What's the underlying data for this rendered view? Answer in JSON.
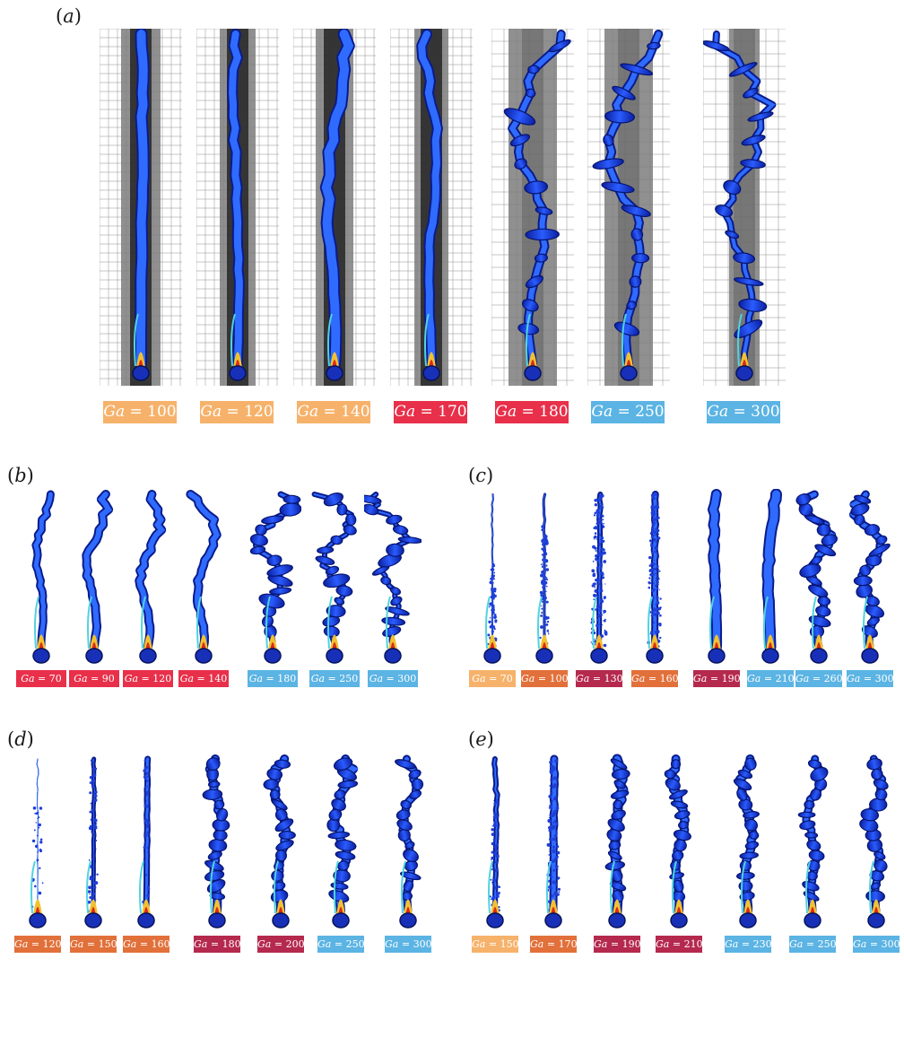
{
  "figure": {
    "panels": [
      {
        "letter": "a",
        "labels": [
          {
            "prefix": "Ga",
            "value": "= 100",
            "color": "#f6b26b"
          },
          {
            "prefix": "Ga",
            "value": "= 120",
            "color": "#f6b26b"
          },
          {
            "prefix": "Ga",
            "value": "= 140",
            "color": "#f6b26b"
          },
          {
            "prefix": "Ga",
            "value": "= 170",
            "color": "#e8304a"
          },
          {
            "prefix": "Ga",
            "value": "= 180",
            "color": "#e8304a"
          },
          {
            "prefix": "Ga",
            "value": "= 250",
            "color": "#5bb4e3"
          },
          {
            "prefix": "Ga",
            "value": "= 300",
            "color": "#5bb4e3"
          }
        ]
      },
      {
        "letter": "b",
        "labels": [
          {
            "prefix": "Ga",
            "value": "= 70",
            "color": "#e8304a"
          },
          {
            "prefix": "Ga",
            "value": "= 90",
            "color": "#e8304a"
          },
          {
            "prefix": "Ga",
            "value": "= 120",
            "color": "#e8304a"
          },
          {
            "prefix": "Ga",
            "value": "= 140",
            "color": "#e8304a"
          },
          {
            "prefix": "Ga",
            "value": "= 180",
            "color": "#5bb4e3"
          },
          {
            "prefix": "Ga",
            "value": "= 250",
            "color": "#5bb4e3"
          },
          {
            "prefix": "Ga",
            "value": "= 300",
            "color": "#5bb4e3"
          }
        ]
      },
      {
        "letter": "c",
        "labels": [
          {
            "prefix": "Ga",
            "value": "= 70",
            "color": "#f6b26b"
          },
          {
            "prefix": "Ga",
            "value": "= 100",
            "color": "#e2703a"
          },
          {
            "prefix": "Ga",
            "value": "= 130",
            "color": "#b5294e"
          },
          {
            "prefix": "Ga",
            "value": "= 160",
            "color": "#e2703a"
          },
          {
            "prefix": "Ga",
            "value": "= 190",
            "color": "#b5294e"
          },
          {
            "prefix": "Ga",
            "value": "= 210",
            "color": "#5bb4e3"
          },
          {
            "prefix": "Ga",
            "value": "= 260",
            "color": "#5bb4e3"
          },
          {
            "prefix": "Ga",
            "value": "= 300",
            "color": "#5bb4e3"
          }
        ]
      },
      {
        "letter": "d",
        "labels": [
          {
            "prefix": "Ga",
            "value": "= 120",
            "color": "#e2703a"
          },
          {
            "prefix": "Ga",
            "value": "= 150",
            "color": "#e2703a"
          },
          {
            "prefix": "Ga",
            "value": "= 160",
            "color": "#e2703a"
          },
          {
            "prefix": "Ga",
            "value": "= 180",
            "color": "#b5294e"
          },
          {
            "prefix": "Ga",
            "value": "= 200",
            "color": "#b5294e"
          },
          {
            "prefix": "Ga",
            "value": "= 250",
            "color": "#5bb4e3"
          },
          {
            "prefix": "Ga",
            "value": "= 300",
            "color": "#5bb4e3"
          }
        ]
      },
      {
        "letter": "e",
        "labels": [
          {
            "prefix": "Ga",
            "value": "= 150",
            "color": "#f6b26b"
          },
          {
            "prefix": "Ga",
            "value": "= 170",
            "color": "#e2703a"
          },
          {
            "prefix": "Ga",
            "value": "= 190",
            "color": "#b5294e"
          },
          {
            "prefix": "Ga",
            "value": "= 210",
            "color": "#b5294e"
          },
          {
            "prefix": "Ga",
            "value": "= 230",
            "color": "#5bb4e3"
          },
          {
            "prefix": "Ga",
            "value": "= 250",
            "color": "#5bb4e3"
          },
          {
            "prefix": "Ga",
            "value": "= 300",
            "color": "#5bb4e3"
          }
        ]
      }
    ]
  }
}
